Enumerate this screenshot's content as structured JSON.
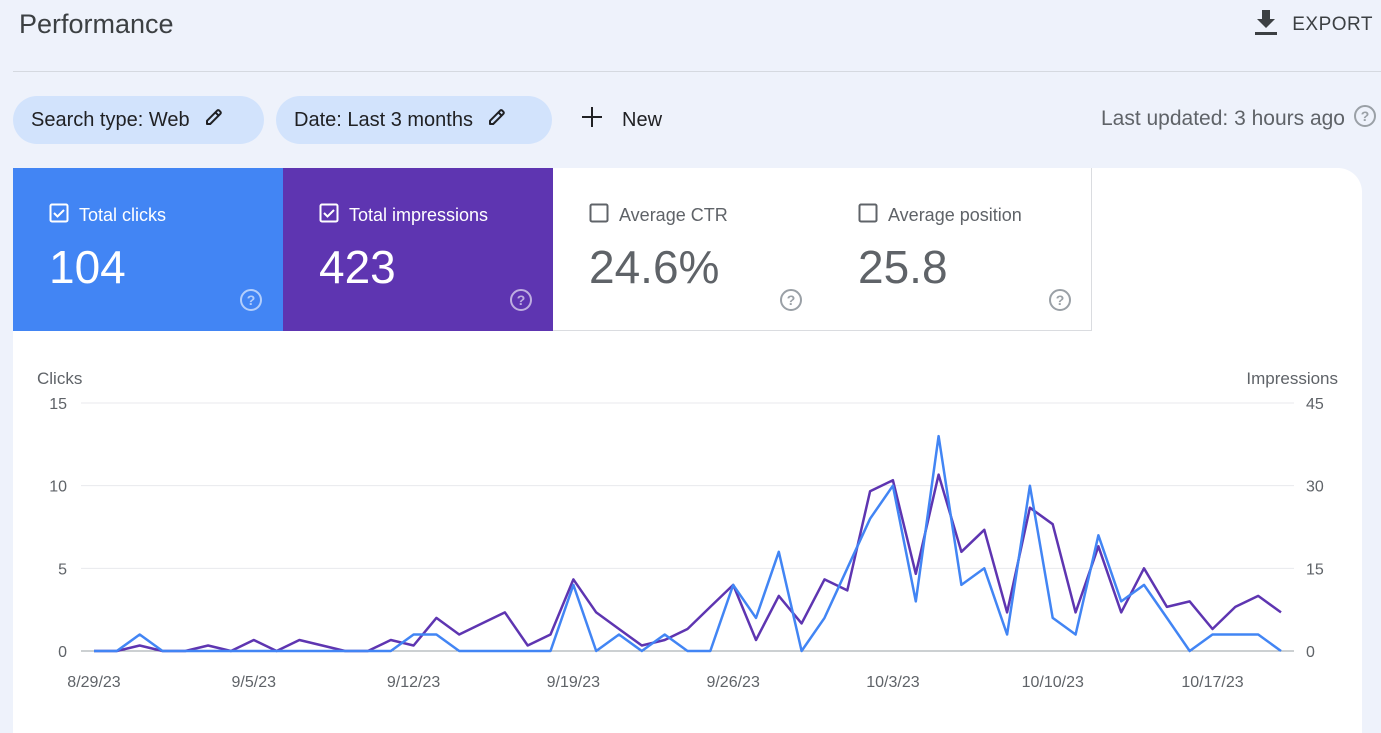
{
  "header": {
    "title": "Performance",
    "export_label": "EXPORT"
  },
  "filters": {
    "search_type": "Search type: Web",
    "date": "Date: Last 3 months",
    "new_label": "New",
    "last_updated": "Last updated: 3 hours ago"
  },
  "metrics": [
    {
      "label": "Total clicks",
      "value": "104",
      "checked": true,
      "color": "#4285f4"
    },
    {
      "label": "Total impressions",
      "value": "423",
      "checked": true,
      "color": "#5e35b1"
    },
    {
      "label": "Average CTR",
      "value": "24.6%",
      "checked": false
    },
    {
      "label": "Average position",
      "value": "25.8",
      "checked": false
    }
  ],
  "chart_data": {
    "type": "line",
    "ylabel_left": "Clicks",
    "ylabel_right": "Impressions",
    "ylim_left": [
      0,
      15
    ],
    "ylim_right": [
      0,
      45
    ],
    "yticks_left": [
      "0",
      "5",
      "10",
      "15"
    ],
    "yticks_right": [
      "0",
      "15",
      "30",
      "45"
    ],
    "x_tick_labels": [
      "8/29/23",
      "9/5/23",
      "9/12/23",
      "9/19/23",
      "9/26/23",
      "10/3/23",
      "10/10/23",
      "10/17/23"
    ],
    "x_tick_indices": [
      0,
      7,
      14,
      21,
      28,
      35,
      42,
      49
    ],
    "grid": true,
    "series": [
      {
        "name": "Total clicks",
        "axis": "left",
        "color": "#4285f4",
        "values": [
          0,
          0,
          1,
          0,
          0,
          0,
          0,
          0,
          0,
          0,
          0,
          0,
          0,
          0,
          1,
          1,
          0,
          0,
          0,
          0,
          0,
          4,
          0,
          1,
          0,
          1,
          0,
          0,
          4,
          2,
          6,
          0,
          2,
          5,
          8,
          10,
          3,
          13,
          4,
          5,
          1,
          10,
          2,
          1,
          7,
          3,
          4,
          2,
          0,
          1,
          1,
          1,
          0
        ]
      },
      {
        "name": "Total impressions",
        "axis": "right",
        "color": "#5e35b1",
        "values": [
          0,
          0,
          1,
          0,
          0,
          1,
          0,
          2,
          0,
          2,
          1,
          0,
          0,
          2,
          1,
          6,
          3,
          5,
          7,
          1,
          3,
          13,
          7,
          4,
          1,
          2,
          4,
          8,
          12,
          2,
          10,
          5,
          13,
          11,
          29,
          31,
          14,
          32,
          18,
          22,
          7,
          26,
          23,
          7,
          19,
          7,
          15,
          8,
          9,
          4,
          8,
          10,
          7
        ]
      }
    ]
  }
}
